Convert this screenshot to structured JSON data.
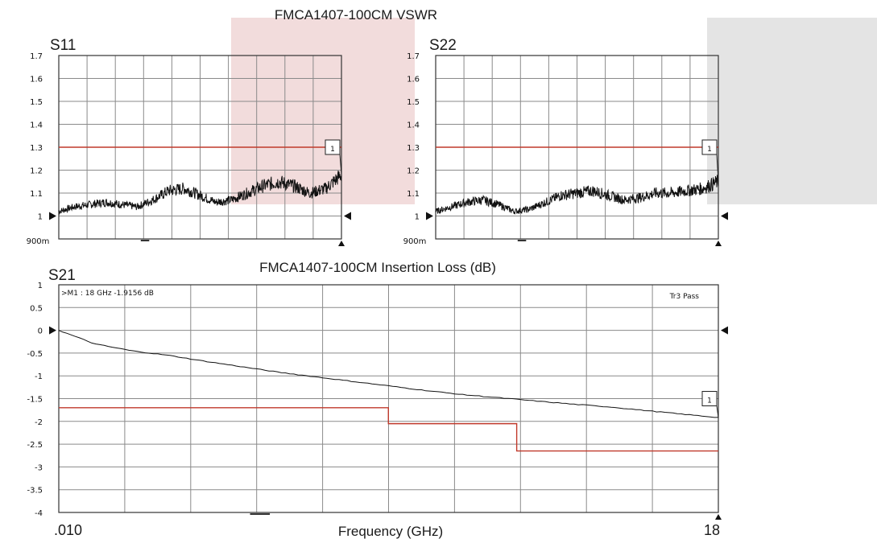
{
  "colors": {
    "limit": "#c0392b",
    "trace": "#111111",
    "grid": "#8a8a8a",
    "s11_overlay": "#f2dcdc",
    "s22_overlay": "#e4e4e4"
  },
  "titles": {
    "vswr": "FMCA1407-100CM VSWR",
    "insertion_loss": "FMCA1407-100CM Insertion Loss (dB)",
    "frequency": "Frequency (GHz)"
  },
  "chart_data": [
    {
      "id": "s11",
      "type": "line",
      "label": "S11",
      "yticks": [
        "1.7",
        "1.6",
        "1.5",
        "1.4",
        "1.3",
        "1.2",
        "1.1",
        "1"
      ],
      "bottom_label": "900m",
      "ylim": [
        0.9,
        1.7
      ],
      "xlim": [
        0.01,
        18
      ],
      "grid": true,
      "limit_line": {
        "value": 1.3
      },
      "marker": {
        "label": "1",
        "x": 18,
        "y": 1.3
      },
      "series": [
        {
          "x": [
            0.01,
            1,
            2,
            3,
            4,
            5,
            6,
            7,
            8,
            9,
            10,
            11,
            12,
            13,
            14,
            15,
            16,
            17,
            18
          ],
          "values": [
            1.02,
            1.04,
            1.05,
            1.06,
            1.05,
            1.04,
            1.07,
            1.11,
            1.12,
            1.09,
            1.06,
            1.07,
            1.1,
            1.13,
            1.15,
            1.13,
            1.1,
            1.12,
            1.18
          ]
        }
      ]
    },
    {
      "id": "s22",
      "type": "line",
      "label": "S22",
      "yticks": [
        "1.7",
        "1.6",
        "1.5",
        "1.4",
        "1.3",
        "1.2",
        "1.1",
        "1"
      ],
      "bottom_label": "900m",
      "ylim": [
        0.9,
        1.7
      ],
      "xlim": [
        0.01,
        18
      ],
      "grid": true,
      "limit_line": {
        "value": 1.3
      },
      "marker": {
        "label": "1",
        "x": 18,
        "y": 1.3
      },
      "series": [
        {
          "x": [
            0.01,
            1,
            2,
            3,
            4,
            5,
            6,
            7,
            8,
            9,
            10,
            11,
            12,
            13,
            14,
            15,
            16,
            17,
            18
          ],
          "values": [
            1.02,
            1.04,
            1.06,
            1.07,
            1.05,
            1.02,
            1.03,
            1.06,
            1.09,
            1.1,
            1.11,
            1.09,
            1.07,
            1.08,
            1.1,
            1.1,
            1.11,
            1.12,
            1.15
          ]
        }
      ]
    },
    {
      "id": "s21",
      "type": "line",
      "label": "S21",
      "yticks": [
        "1",
        "0.5",
        "0",
        "-0.5",
        "-1",
        "-1.5",
        "-2",
        "-2.5",
        "-3",
        "-3.5",
        "-4"
      ],
      "ylim": [
        -4,
        1
      ],
      "xlim": [
        0.01,
        18
      ],
      "grid": true,
      "x_tick_labels": [
        ".010",
        "18"
      ],
      "annotation": ">M1 :  18 GHz  -1.9156  dB",
      "status": "Tr3 Pass",
      "marker": {
        "label": "1",
        "x": 18,
        "y": -1.5
      },
      "limit_steps": [
        {
          "from": 0.01,
          "to": 9,
          "value": -1.7
        },
        {
          "from": 9,
          "to": 12.5,
          "value": -2.05
        },
        {
          "from": 12.5,
          "to": 18,
          "value": -2.65
        }
      ],
      "series": [
        {
          "x": [
            0.01,
            1,
            2,
            3,
            4,
            5,
            6,
            7,
            8,
            9,
            10,
            11,
            12,
            13,
            14,
            15,
            16,
            17,
            18
          ],
          "values": [
            0,
            -0.3,
            -0.45,
            -0.55,
            -0.68,
            -0.8,
            -0.92,
            -1.02,
            -1.12,
            -1.22,
            -1.32,
            -1.41,
            -1.48,
            -1.55,
            -1.62,
            -1.68,
            -1.76,
            -1.84,
            -1.9156
          ]
        }
      ]
    }
  ]
}
